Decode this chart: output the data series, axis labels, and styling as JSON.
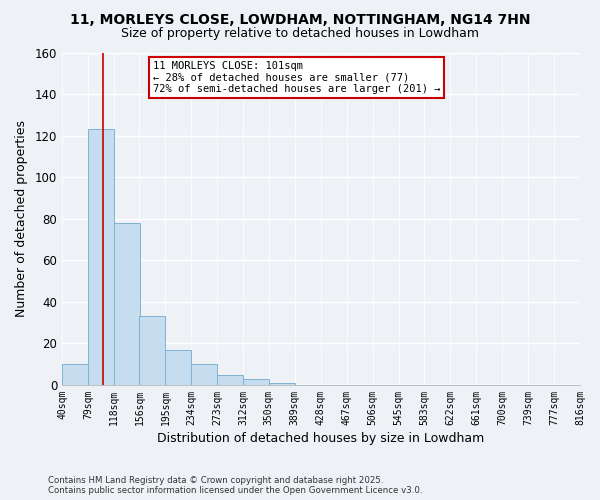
{
  "title": "11, MORLEYS CLOSE, LOWDHAM, NOTTINGHAM, NG14 7HN",
  "subtitle": "Size of property relative to detached houses in Lowdham",
  "xlabel": "Distribution of detached houses by size in Lowdham",
  "ylabel": "Number of detached properties",
  "bar_values": [
    10,
    123,
    78,
    33,
    17,
    10,
    5,
    3,
    1,
    0,
    0,
    0,
    0,
    0,
    0,
    0,
    0,
    0,
    0,
    0
  ],
  "bin_edges": [
    40,
    79,
    118,
    156,
    195,
    234,
    273,
    312,
    350,
    389,
    428,
    467,
    506,
    545,
    583,
    622,
    661,
    700,
    739,
    778
  ],
  "bin_width": 39,
  "bin_labels": [
    "40sqm",
    "79sqm",
    "118sqm",
    "156sqm",
    "195sqm",
    "234sqm",
    "273sqm",
    "312sqm",
    "350sqm",
    "389sqm",
    "428sqm",
    "467sqm",
    "506sqm",
    "545sqm",
    "583sqm",
    "622sqm",
    "661sqm",
    "700sqm",
    "739sqm",
    "777sqm",
    "816sqm"
  ],
  "bar_color": "#c6ddef",
  "bar_edge_color": "#7fb3d3",
  "red_line_x": 101,
  "red_line_color": "#cc0000",
  "ylim": [
    0,
    160
  ],
  "yticks": [
    0,
    20,
    40,
    60,
    80,
    100,
    120,
    140,
    160
  ],
  "annotation_title": "11 MORLEYS CLOSE: 101sqm",
  "annotation_line1": "← 28% of detached houses are smaller (77)",
  "annotation_line2": "72% of semi-detached houses are larger (201) →",
  "annotation_box_facecolor": "#ffffff",
  "annotation_box_edgecolor": "#cc0000",
  "background_color": "#eef2f7",
  "grid_color": "#ffffff",
  "title_fontsize": 10,
  "subtitle_fontsize": 9,
  "footer_line1": "Contains HM Land Registry data © Crown copyright and database right 2025.",
  "footer_line2": "Contains public sector information licensed under the Open Government Licence v3.0."
}
